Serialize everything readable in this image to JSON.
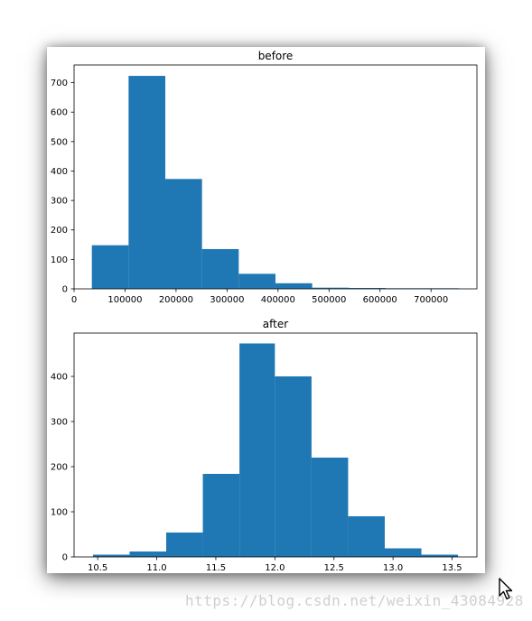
{
  "chart_data": [
    {
      "type": "bar",
      "title": "before",
      "xlabel": "",
      "ylabel": "",
      "color": "#1f77b4",
      "bin_edges": [
        34900,
        106910,
        178920,
        250930,
        322940,
        394950,
        466960,
        538970,
        610980,
        682990,
        755000
      ],
      "values": [
        148,
        723,
        373,
        135,
        51,
        19,
        4,
        3,
        2,
        2
      ],
      "xlim": [
        0,
        790000
      ],
      "ylim": [
        0,
        760
      ],
      "xticks": [
        0,
        100000,
        200000,
        300000,
        400000,
        500000,
        600000,
        700000
      ],
      "xtick_labels": [
        "0",
        "100000",
        "200000",
        "300000",
        "400000",
        "500000",
        "600000",
        "700000"
      ],
      "yticks": [
        0,
        100,
        200,
        300,
        400,
        500,
        600,
        700
      ],
      "ytick_labels": [
        "0",
        "100",
        "200",
        "300",
        "400",
        "500",
        "600",
        "700"
      ]
    },
    {
      "type": "bar",
      "title": "after",
      "xlabel": "",
      "ylabel": "",
      "color": "#1f77b4",
      "bin_edges": [
        10.46,
        10.77,
        11.08,
        11.39,
        11.7,
        12.0,
        12.31,
        12.62,
        12.93,
        13.24,
        13.55
      ],
      "values": [
        5,
        12,
        54,
        184,
        473,
        400,
        220,
        90,
        19,
        5
      ],
      "xlim": [
        10.3,
        13.71
      ],
      "ylim": [
        0,
        496
      ],
      "xticks": [
        10.5,
        11.0,
        11.5,
        12.0,
        12.5,
        13.0,
        13.5
      ],
      "xtick_labels": [
        "10.5",
        "11.0",
        "11.5",
        "12.0",
        "12.5",
        "13.0",
        "13.5"
      ],
      "yticks": [
        0,
        100,
        200,
        300,
        400
      ],
      "ytick_labels": [
        "0",
        "100",
        "200",
        "300",
        "400"
      ]
    }
  ],
  "watermark": "https://blog.csdn.net/weixin_43084928"
}
